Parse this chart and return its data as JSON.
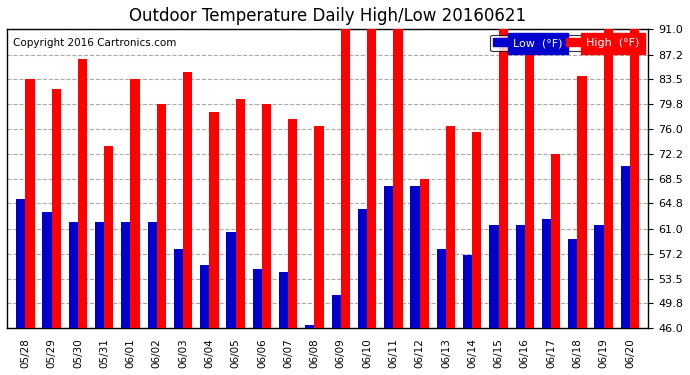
{
  "title": "Outdoor Temperature Daily High/Low 20160621",
  "copyright": "Copyright 2016 Cartronics.com",
  "dates": [
    "05/28",
    "05/29",
    "05/30",
    "05/31",
    "06/01",
    "06/02",
    "06/03",
    "06/04",
    "06/05",
    "06/06",
    "06/07",
    "06/08",
    "06/09",
    "06/10",
    "06/11",
    "06/12",
    "06/13",
    "06/14",
    "06/15",
    "06/16",
    "06/17",
    "06/18",
    "06/19",
    "06/20"
  ],
  "high": [
    83.5,
    82.0,
    86.5,
    73.5,
    83.5,
    79.8,
    84.5,
    78.5,
    80.5,
    79.8,
    77.5,
    76.5,
    91.0,
    91.0,
    91.0,
    68.5,
    76.5,
    75.5,
    91.0,
    87.2,
    72.2,
    84.0,
    91.0,
    91.0
  ],
  "low": [
    65.5,
    63.5,
    62.0,
    62.0,
    62.0,
    62.0,
    58.0,
    55.5,
    60.5,
    55.0,
    54.5,
    46.5,
    51.0,
    64.0,
    67.5,
    67.5,
    58.0,
    57.0,
    61.5,
    61.5,
    62.5,
    59.5,
    61.5,
    70.5
  ],
  "ylim": [
    46.0,
    91.0
  ],
  "yticks": [
    46.0,
    49.8,
    53.5,
    57.2,
    61.0,
    64.8,
    68.5,
    72.2,
    76.0,
    79.8,
    83.5,
    87.2,
    91.0
  ],
  "bar_width": 0.35,
  "high_color": "#ff0000",
  "low_color": "#0000cc",
  "bg_color": "#ffffff",
  "grid_color": "#aaaaaa",
  "title_fontsize": 12,
  "legend_low_label": "Low  (°F)",
  "legend_high_label": "High  (°F)"
}
